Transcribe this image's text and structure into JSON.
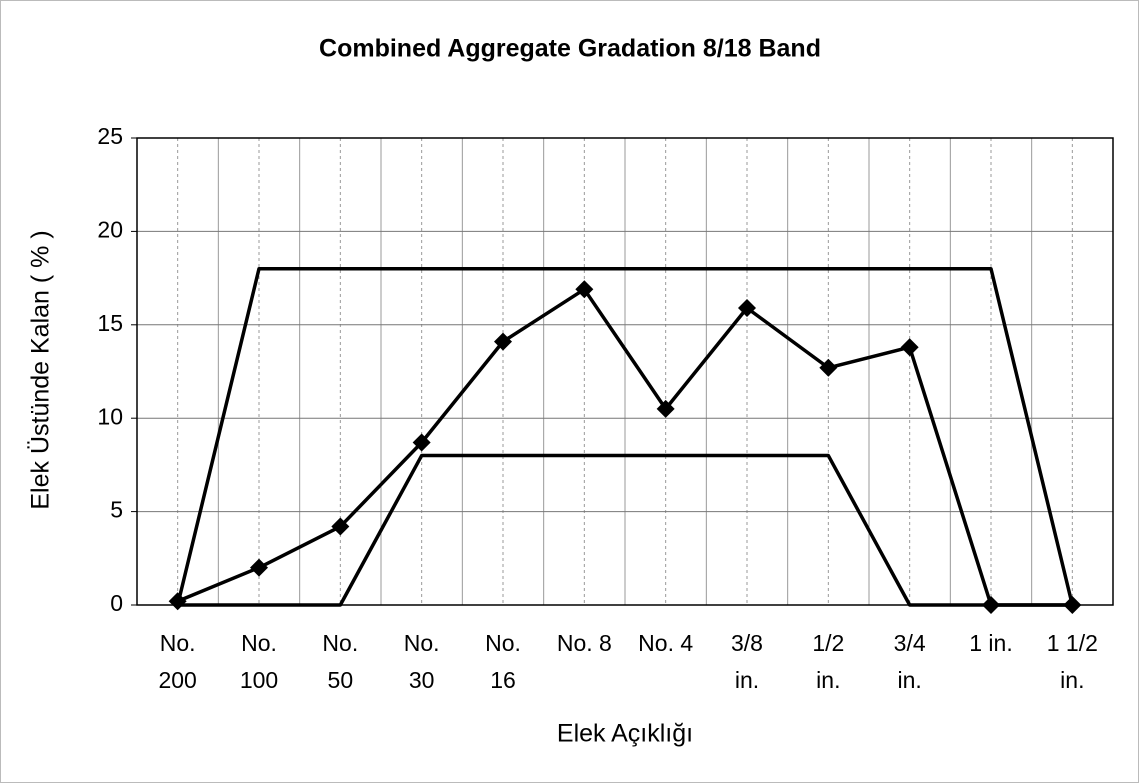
{
  "chart_data": {
    "type": "line",
    "title": "Combined Aggregate Gradation 8/18 Band",
    "x_label": "Elek Açıklığı",
    "y_label": "Elek Üstünde Kalan ( % )",
    "categories": [
      [
        "No.",
        "200"
      ],
      [
        "No.",
        "100"
      ],
      [
        "No.",
        "50"
      ],
      [
        "No.",
        "30"
      ],
      [
        "No.",
        "16"
      ],
      [
        "No. 8"
      ],
      [
        "No. 4"
      ],
      [
        "3/8",
        "in."
      ],
      [
        "1/2",
        "in."
      ],
      [
        "3/4",
        "in."
      ],
      [
        "1 in."
      ],
      [
        "1 1/2",
        "in."
      ]
    ],
    "series": [
      {
        "color": "#000000",
        "marker": "diamond",
        "values": [
          0.2,
          2,
          4.2,
          8.7,
          14.1,
          16.9,
          10.5,
          15.9,
          12.7,
          13.8,
          0,
          0
        ]
      },
      {
        "color": "#000000",
        "values": [
          0,
          18,
          18,
          18,
          18,
          18,
          18,
          18,
          18,
          18,
          18,
          0
        ]
      },
      {
        "color": "#000000",
        "values": [
          0,
          0,
          0,
          8,
          8,
          8,
          8,
          8,
          8,
          0,
          0,
          0
        ]
      }
    ],
    "ylim": [
      0,
      25
    ],
    "yticks": [
      0,
      5,
      10,
      15,
      20,
      25
    ],
    "grid": true
  }
}
